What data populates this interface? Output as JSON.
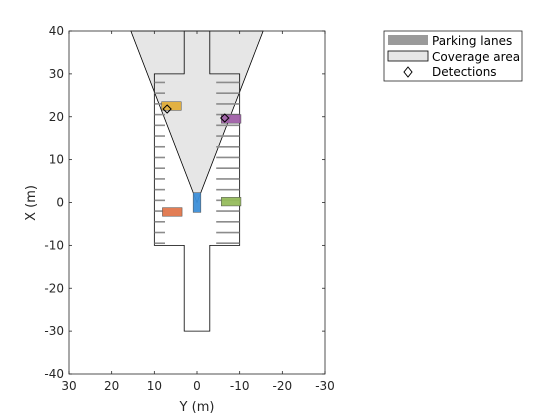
{
  "chart_data": {
    "type": "scatter",
    "xlabel": "Y (m)",
    "ylabel": "X (m)",
    "xlim": [
      30,
      -30
    ],
    "ylim": [
      -40,
      40
    ],
    "xticks": [
      30,
      20,
      10,
      0,
      -10,
      -20,
      -30
    ],
    "yticks": [
      40,
      30,
      20,
      10,
      0,
      -10,
      -20,
      -30,
      -40
    ],
    "tick_labels_x": [
      "30",
      "20",
      "10",
      "0",
      "-10",
      "-20",
      "-30"
    ],
    "tick_labels_y": [
      "40",
      "30",
      "20",
      "10",
      "0",
      "-10",
      "-20",
      "-30",
      "-40"
    ],
    "legend_placement": "outside-top-right",
    "legend": [
      {
        "name": "Parking lanes",
        "kind": "patch-gray"
      },
      {
        "name": "Coverage area",
        "kind": "patch-outline"
      },
      {
        "name": "Detections",
        "kind": "marker-diamond"
      }
    ],
    "road_outline": [
      [
        3,
        -30
      ],
      [
        3,
        -10
      ],
      [
        10,
        -10
      ],
      [
        10,
        30
      ],
      [
        3,
        30
      ],
      [
        3,
        40
      ],
      [
        -3,
        40
      ],
      [
        -3,
        30
      ],
      [
        -10,
        30
      ],
      [
        -10,
        -10
      ],
      [
        -3,
        -10
      ],
      [
        -3,
        -30
      ]
    ],
    "coverage_polygon": [
      [
        0,
        0
      ],
      [
        15.5,
        40
      ],
      [
        -15.5,
        40
      ]
    ],
    "lane_left_y": [
      7.5,
      10
    ],
    "lane_right_y": [
      -10,
      -4.5
    ],
    "lane_x_values": [
      28,
      25.5,
      23,
      20.5,
      18,
      15.5,
      13,
      10.5,
      8,
      5.5,
      3,
      0.5,
      -2,
      -4.5,
      -7,
      -9.5
    ],
    "vehicles": [
      {
        "y": 0,
        "x": 0,
        "w": 1.8,
        "h": 4.6,
        "color": "#3d8fd8"
      },
      {
        "y": 6,
        "x": 22.5,
        "w": 4.6,
        "h": 2.0,
        "color": "#e2ae3a"
      },
      {
        "y": -8,
        "x": 19.5,
        "w": 4.6,
        "h": 2.0,
        "color": "#a060a8"
      },
      {
        "y": 5.8,
        "x": -2.2,
        "w": 4.6,
        "h": 2.0,
        "color": "#e0764c"
      },
      {
        "y": -8,
        "x": 0.2,
        "w": 4.6,
        "h": 2.0,
        "color": "#96bc5c"
      }
    ],
    "detections": [
      {
        "y": 7,
        "x": 21.8
      },
      {
        "y": -6.5,
        "x": 19.7
      }
    ]
  }
}
